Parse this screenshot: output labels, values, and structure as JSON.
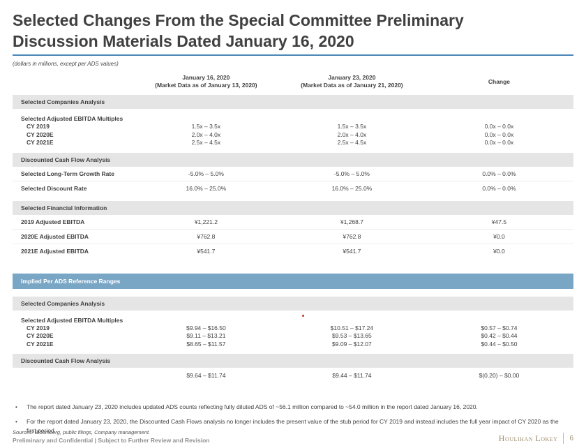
{
  "header": {
    "title_line1": "Selected Changes From the Special Committee Preliminary",
    "title_line2": "Discussion Materials Dated January 16, 2020",
    "subtitle": "(dollars in millions, except per ADS values)"
  },
  "colors": {
    "title_rule_blue": "#4a86b8",
    "section_band_gray": "#e5e5e5",
    "highlight_band_blue": "#7aa6c6",
    "logo_gold": "#9e8e6e",
    "annotation_red_dot": "#c0392b"
  },
  "columns": [
    {
      "line1": "January 16, 2020",
      "line2": "(Market Data as of January 13, 2020)"
    },
    {
      "line1": "January 23, 2020",
      "line2": "(Market Data as of January 21, 2020)"
    },
    {
      "line1": "Change",
      "line2": ""
    }
  ],
  "t1": {
    "s1": {
      "title": "Selected Companies Analysis",
      "group_label": "Selected Adjusted EBITDA Multiples",
      "rows": [
        {
          "label": "CY 2019",
          "v1": "1.5x – 3.5x",
          "v2": "1.5x – 3.5x",
          "v3": "0.0x – 0.0x"
        },
        {
          "label": "CY 2020E",
          "v1": "2.0x – 4.0x",
          "v2": "2.0x – 4.0x",
          "v3": "0.0x – 0.0x"
        },
        {
          "label": "CY 2021E",
          "v1": "2.5x – 4.5x",
          "v2": "2.5x – 4.5x",
          "v3": "0.0x – 0.0x"
        }
      ]
    },
    "s2": {
      "title": "Discounted Cash Flow Analysis",
      "rows": [
        {
          "label": "Selected Long-Term Growth Rate",
          "v1": "-5.0% – 5.0%",
          "v2": "-5.0% – 5.0%",
          "v3": "0.0% – 0.0%"
        },
        {
          "label": "Selected Discount Rate",
          "v1": "16.0% – 25.0%",
          "v2": "16.0% – 25.0%",
          "v3": "0.0% – 0.0%"
        }
      ]
    },
    "s3": {
      "title": "Selected Financial Information",
      "rows": [
        {
          "label": "2019 Adjusted EBITDA",
          "v1": "¥1,221.2",
          "v2": "¥1,268.7",
          "v3": "¥47.5"
        },
        {
          "label": "2020E Adjusted EBITDA",
          "v1": "¥762.8",
          "v2": "¥762.8",
          "v3": "¥0.0"
        },
        {
          "label": "2021E Adjusted EBITDA",
          "v1": "¥541.7",
          "v2": "¥541.7",
          "v3": "¥0.0"
        }
      ]
    }
  },
  "blue_band": {
    "title": "Implied Per ADS Reference Ranges"
  },
  "t2": {
    "s1": {
      "title": "Selected Companies Analysis",
      "group_label": "Selected Adjusted EBITDA Multiples",
      "rows": [
        {
          "label": "CY 2019",
          "v1": "$9.94 – $16.50",
          "v2": "$10.51 – $17.24",
          "v3": "$0.57 – $0.74"
        },
        {
          "label": "CY 2020E",
          "v1": "$9.11 – $13.21",
          "v2": "$9.53 – $13.65",
          "v3": "$0.42 – $0.44"
        },
        {
          "label": "CY 2021E",
          "v1": "$8.65 – $11.57",
          "v2": "$9.09 – $12.07",
          "v3": "$0.44 – $0.50"
        }
      ]
    },
    "s2": {
      "title": "Discounted Cash Flow Analysis",
      "rows": [
        {
          "label": "",
          "v1": "$9.64 – $11.74",
          "v2": "$9.44 – $11.74",
          "v3": "$(0.20) – $0.00"
        }
      ]
    }
  },
  "bullets": [
    "The report dated January 23, 2020 includes updated ADS counts reflecting fully diluted ADS of ~56.1 million compared to ~54.0 million in the report dated January 16, 2020.",
    "For the report dated January 23, 2020, the Discounted Cash Flows analysis no longer includes the present value of the stub period for CY 2019 and instead includes the full year impact of CY 2020 as the first period."
  ],
  "footer": {
    "sources": "Sources: Bloomberg, public filings, Company management.",
    "confidential": "Preliminary and Confidential | Subject to Further Review and Revision",
    "logo": "Houlihan Lokey",
    "page_number": "6"
  }
}
